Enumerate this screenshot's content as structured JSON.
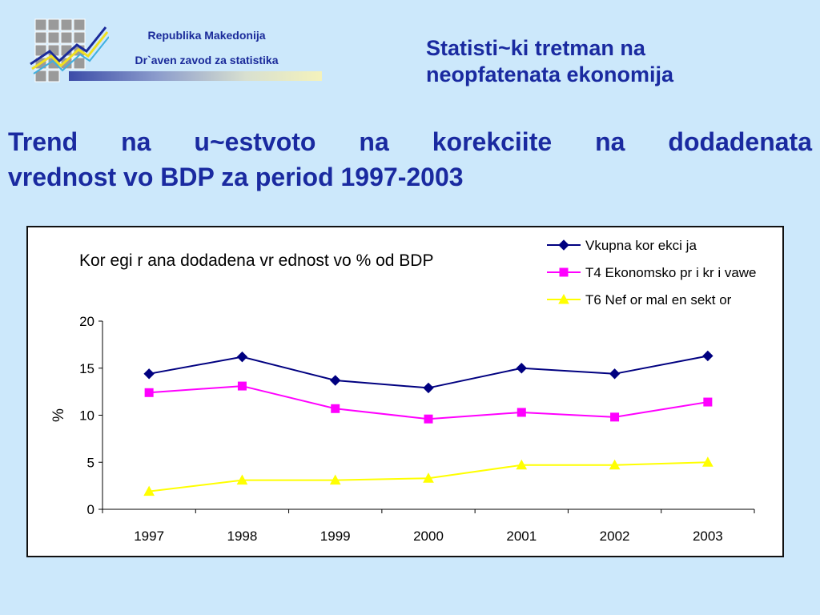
{
  "header": {
    "org_line1": "Republika Makedonija",
    "org_line2": "Dr`aven zavod za statistika",
    "title_line1": "Statisti~ki tretman na",
    "title_line2": "neopfatenata ekonomija"
  },
  "slide": {
    "title_line1": "Trend na u~estvoto na korekciite na dodadenata",
    "title_line2": "vrednost vo BDP za period  1997-2003"
  },
  "colors": {
    "background": "#cce8fb",
    "title": "#1a2aa0",
    "series1": "#000080",
    "series2": "#ff00ff",
    "series3": "#ffff00"
  },
  "chart_data": {
    "type": "line",
    "title": "Kor egi r ana dodadena vr ednost  vo % od BDP",
    "xlabel": "",
    "ylabel": "%",
    "categories": [
      "1997",
      "1998",
      "1999",
      "2000",
      "2001",
      "2002",
      "2003"
    ],
    "ylim": [
      0,
      20
    ],
    "yticks": [
      "0",
      "5",
      "10",
      "15",
      "20"
    ],
    "legend_position": "top-right",
    "grid": false,
    "series": [
      {
        "name": "Vkupna kor ekci ja",
        "marker": "diamond",
        "color": "#000080",
        "values": [
          14.4,
          16.2,
          13.7,
          12.9,
          15.0,
          14.4,
          16.3
        ]
      },
      {
        "name": "T4 Ekonomsko pr i kr i vawe",
        "marker": "square",
        "color": "#ff00ff",
        "values": [
          12.4,
          13.1,
          10.7,
          9.6,
          10.3,
          9.8,
          11.4
        ]
      },
      {
        "name": "T6 Nef  or mal en sekt or",
        "marker": "triangle",
        "color": "#ffff00",
        "values": [
          1.9,
          3.1,
          3.1,
          3.3,
          4.7,
          4.7,
          5.0
        ]
      }
    ]
  }
}
